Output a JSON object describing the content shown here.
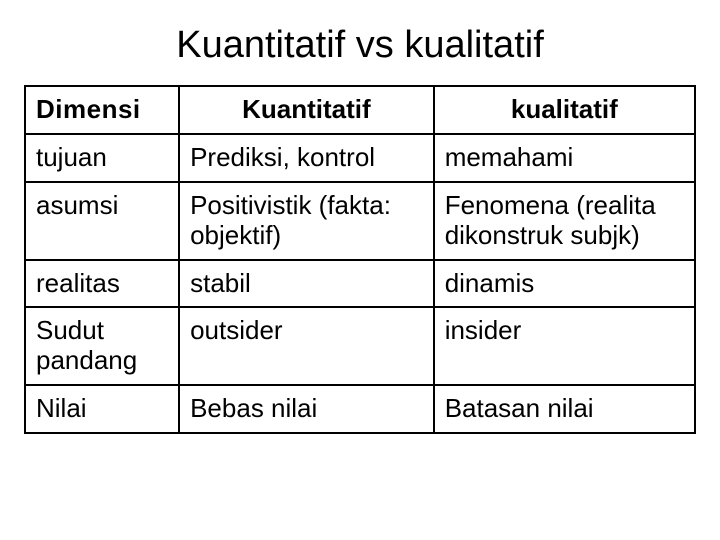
{
  "title": "Kuantitatif vs kualitatif",
  "table": {
    "type": "table",
    "background_color": "#ffffff",
    "border_color": "#000000",
    "col_widths_pct": [
      23,
      38,
      39
    ],
    "header_fontsize": 26,
    "cell_fontsize": 26,
    "columns": [
      "Dimensi",
      "Kuantitatif",
      "kualitatif"
    ],
    "rows": [
      {
        "dim": "tujuan",
        "quant": "Prediksi, kontrol",
        "qual": "memahami"
      },
      {
        "dim": "asumsi",
        "quant": "Positivistik (fakta: objektif)",
        "qual": "Fenomena (realita dikonstruk subjk)"
      },
      {
        "dim": "realitas",
        "quant": "stabil",
        "qual": "dinamis"
      },
      {
        "dim": "Sudut pandang",
        "quant": "outsider",
        "qual": "insider"
      },
      {
        "dim": "Nilai",
        "quant": "Bebas nilai",
        "qual": "Batasan nilai"
      }
    ]
  }
}
